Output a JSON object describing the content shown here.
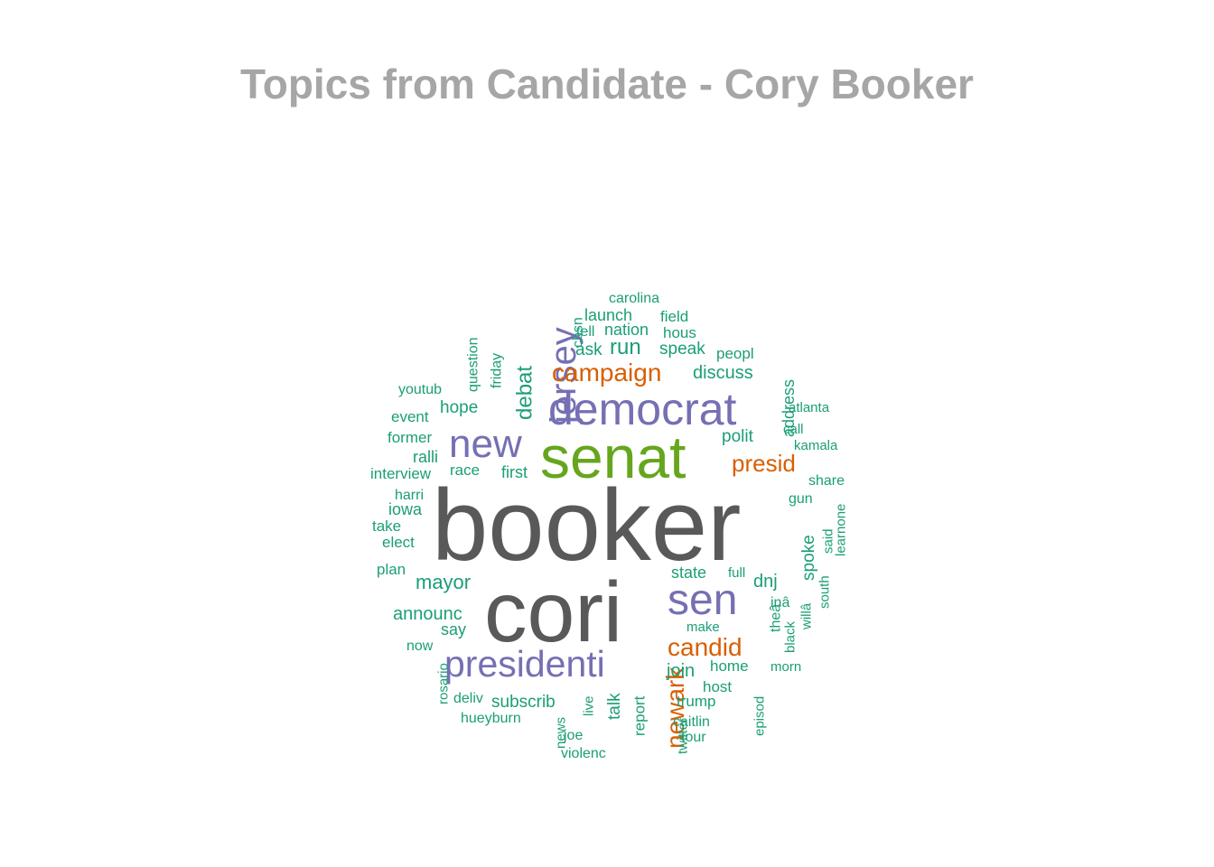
{
  "chart_data": {
    "type": "wordcloud",
    "title": "Topics from Candidate - Cory Booker",
    "colors": {
      "tier1": "#595959",
      "tier2": "#66a61e",
      "tier3": "#7570b3",
      "tier4": "#d95f02",
      "tier5": "#1b9e77",
      "title": "#a6a6a6"
    },
    "words": [
      {
        "text": "booker",
        "tier": 1,
        "vertical": false
      },
      {
        "text": "cori",
        "tier": 1,
        "vertical": false
      },
      {
        "text": "senat",
        "tier": 2,
        "vertical": false
      },
      {
        "text": "democrat",
        "tier": 3,
        "vertical": false
      },
      {
        "text": "jersey",
        "tier": 3,
        "vertical": true
      },
      {
        "text": "new",
        "tier": 3,
        "vertical": false
      },
      {
        "text": "sen",
        "tier": 3,
        "vertical": false
      },
      {
        "text": "presidenti",
        "tier": 3,
        "vertical": false
      },
      {
        "text": "campaign",
        "tier": 4,
        "vertical": false
      },
      {
        "text": "presid",
        "tier": 4,
        "vertical": false
      },
      {
        "text": "candid",
        "tier": 4,
        "vertical": false
      },
      {
        "text": "newark",
        "tier": 4,
        "vertical": true
      },
      {
        "text": "debat",
        "tier": 5,
        "vertical": true
      },
      {
        "text": "mayor",
        "tier": 5,
        "vertical": false
      },
      {
        "text": "announc",
        "tier": 5,
        "vertical": false
      },
      {
        "text": "run",
        "tier": 5,
        "vertical": false
      },
      {
        "text": "discuss",
        "tier": 5,
        "vertical": false
      },
      {
        "text": "speak",
        "tier": 5,
        "vertical": false
      },
      {
        "text": "polit",
        "tier": 5,
        "vertical": false
      },
      {
        "text": "hope",
        "tier": 5,
        "vertical": false
      },
      {
        "text": "ask",
        "tier": 5,
        "vertical": false
      },
      {
        "text": "join",
        "tier": 5,
        "vertical": false
      },
      {
        "text": "spoke",
        "tier": 5,
        "vertical": true
      },
      {
        "text": "dnj",
        "tier": 5,
        "vertical": false
      },
      {
        "text": "state",
        "tier": 5,
        "vertical": false
      },
      {
        "text": "talk",
        "tier": 5,
        "vertical": true
      },
      {
        "text": "subscrib",
        "tier": 5,
        "vertical": false
      },
      {
        "text": "launch",
        "tier": 5,
        "vertical": false
      },
      {
        "text": "nation",
        "tier": 5,
        "vertical": false
      },
      {
        "text": "first",
        "tier": 5,
        "vertical": false
      },
      {
        "text": "race",
        "tier": 5,
        "vertical": false
      },
      {
        "text": "address",
        "tier": 5,
        "vertical": true
      },
      {
        "text": "say",
        "tier": 5,
        "vertical": false
      },
      {
        "text": "home",
        "tier": 5,
        "vertical": false
      },
      {
        "text": "trump",
        "tier": 5,
        "vertical": false
      },
      {
        "text": "host",
        "tier": 5,
        "vertical": false
      },
      {
        "text": "report",
        "tier": 5,
        "vertical": true
      },
      {
        "text": "question",
        "tier": 5,
        "vertical": true
      },
      {
        "text": "carolina",
        "tier": 5,
        "vertical": false
      },
      {
        "text": "field",
        "tier": 5,
        "vertical": false
      },
      {
        "text": "hous",
        "tier": 5,
        "vertical": false
      },
      {
        "text": "tell",
        "tier": 5,
        "vertical": false
      },
      {
        "text": "cbsn",
        "tier": 5,
        "vertical": true
      },
      {
        "text": "peopl",
        "tier": 5,
        "vertical": false
      },
      {
        "text": "friday",
        "tier": 5,
        "vertical": true
      },
      {
        "text": "youtub",
        "tier": 5,
        "vertical": false
      },
      {
        "text": "event",
        "tier": 5,
        "vertical": false
      },
      {
        "text": "former",
        "tier": 5,
        "vertical": false
      },
      {
        "text": "ralli",
        "tier": 5,
        "vertical": false
      },
      {
        "text": "interview",
        "tier": 5,
        "vertical": false
      },
      {
        "text": "harri",
        "tier": 5,
        "vertical": false
      },
      {
        "text": "iowa",
        "tier": 5,
        "vertical": false
      },
      {
        "text": "take",
        "tier": 5,
        "vertical": false
      },
      {
        "text": "elect",
        "tier": 5,
        "vertical": false
      },
      {
        "text": "plan",
        "tier": 5,
        "vertical": false
      },
      {
        "text": "now",
        "tier": 5,
        "vertical": false
      },
      {
        "text": "rosario",
        "tier": 5,
        "vertical": true
      },
      {
        "text": "deliv",
        "tier": 5,
        "vertical": false
      },
      {
        "text": "hueyburn",
        "tier": 5,
        "vertical": false
      },
      {
        "text": "news",
        "tier": 5,
        "vertical": true
      },
      {
        "text": "live",
        "tier": 5,
        "vertical": true
      },
      {
        "text": "joe",
        "tier": 5,
        "vertical": false
      },
      {
        "text": "violenc",
        "tier": 5,
        "vertical": false
      },
      {
        "text": "twitter",
        "tier": 5,
        "vertical": true
      },
      {
        "text": "caitlin",
        "tier": 5,
        "vertical": false
      },
      {
        "text": "tour",
        "tier": 5,
        "vertical": false
      },
      {
        "text": "episod",
        "tier": 5,
        "vertical": true
      },
      {
        "text": "make",
        "tier": 5,
        "vertical": false
      },
      {
        "text": "full",
        "tier": 5,
        "vertical": false
      },
      {
        "text": "theâ",
        "tier": 5,
        "vertical": true
      },
      {
        "text": "black",
        "tier": 5,
        "vertical": true
      },
      {
        "text": "inâ",
        "tier": 5,
        "vertical": false
      },
      {
        "text": "willâ",
        "tier": 5,
        "vertical": true
      },
      {
        "text": "south",
        "tier": 5,
        "vertical": true
      },
      {
        "text": "morn",
        "tier": 5,
        "vertical": false
      },
      {
        "text": "gun",
        "tier": 5,
        "vertical": false
      },
      {
        "text": "said",
        "tier": 5,
        "vertical": true
      },
      {
        "text": "learnone",
        "tier": 5,
        "vertical": true
      },
      {
        "text": "share",
        "tier": 5,
        "vertical": false
      },
      {
        "text": "kamala",
        "tier": 5,
        "vertical": false
      },
      {
        "text": "call",
        "tier": 5,
        "vertical": false
      },
      {
        "text": "atlanta",
        "tier": 5,
        "vertical": false
      }
    ]
  }
}
